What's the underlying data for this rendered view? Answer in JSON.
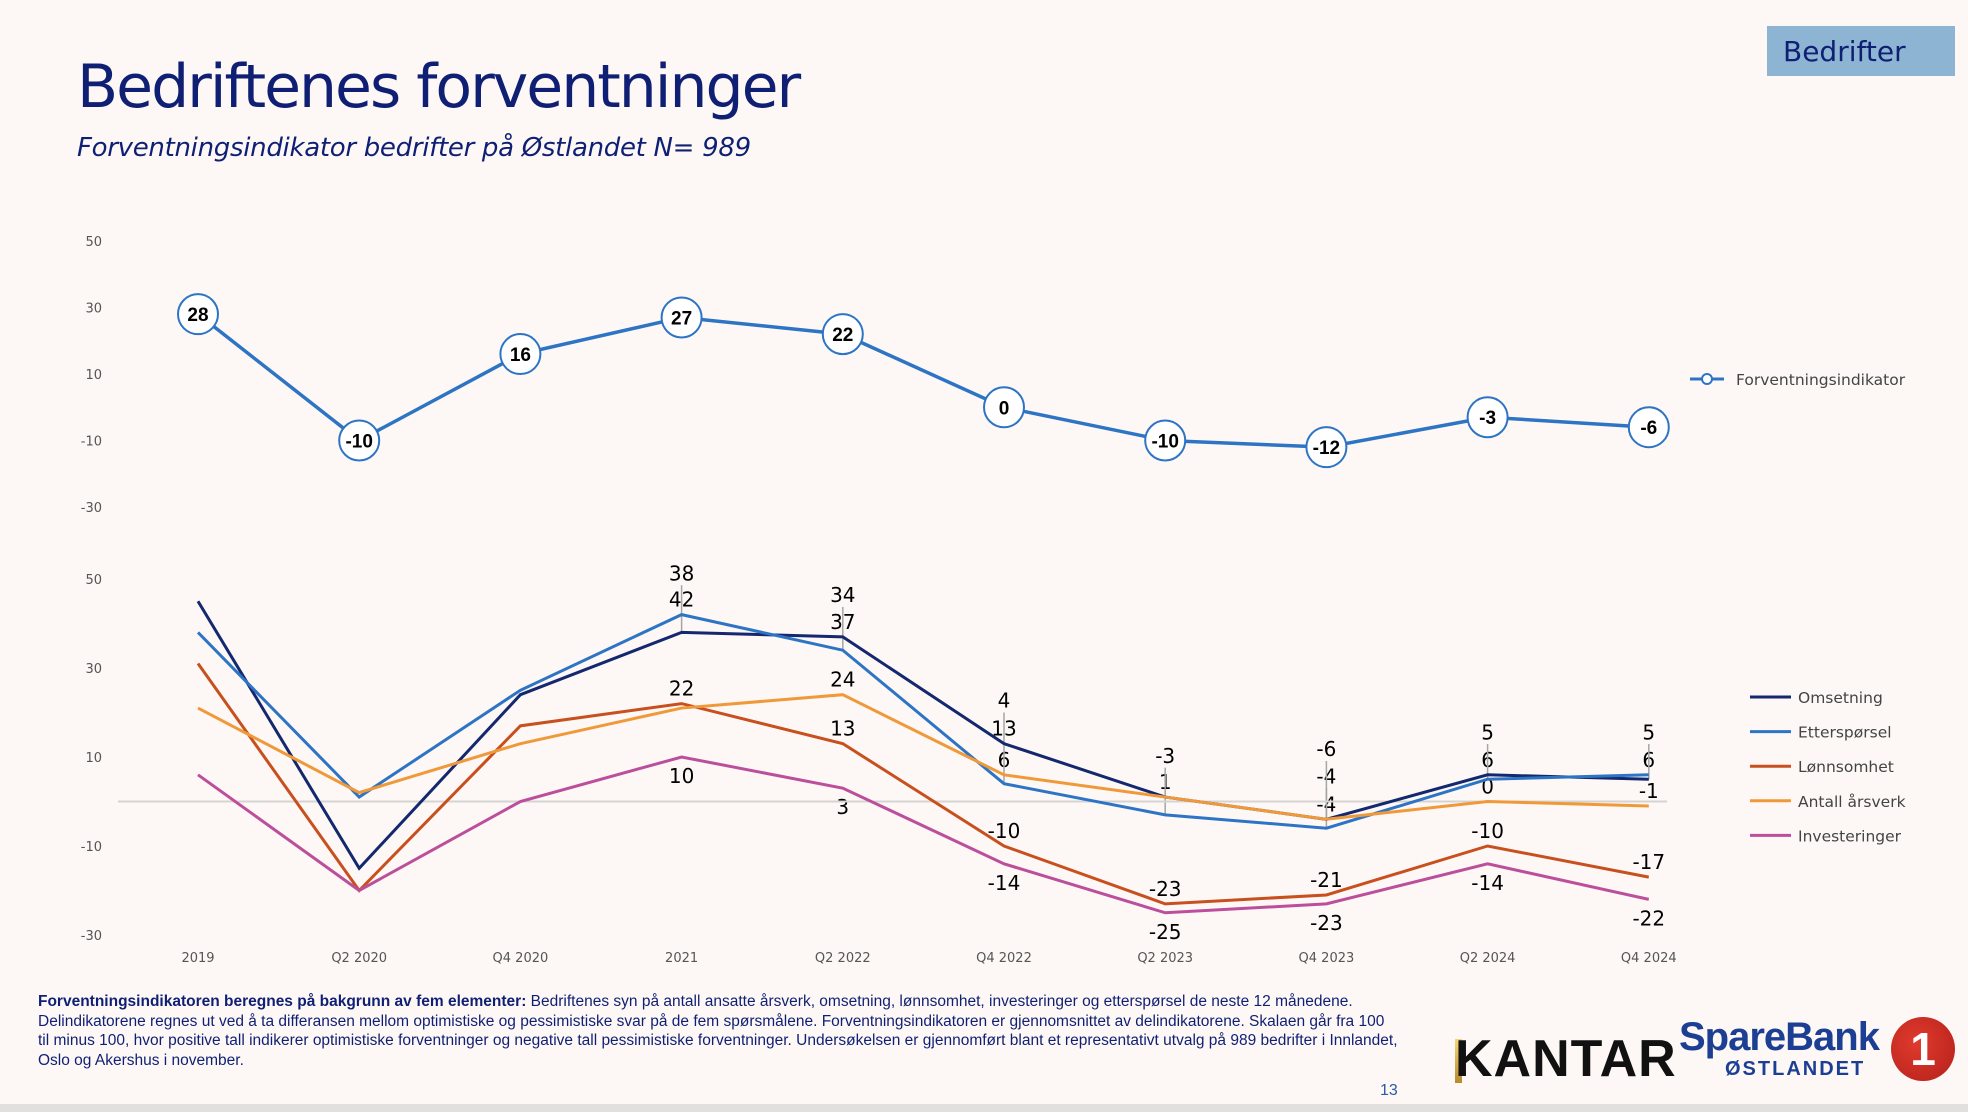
{
  "header": {
    "title": "Bedriftenes forventninger",
    "subtitle": "Forventningsindikator bedrifter på Østlandet N= 989",
    "badge": "Bedrifter"
  },
  "colors": {
    "brand_navy": "#0f1f74",
    "badge_bg": "#8db4d2",
    "background": "#fdf8f5"
  },
  "chart_data": [
    {
      "type": "line",
      "title": "Forventningsindikator",
      "categories": [
        "2019",
        "Q2 2020",
        "Q4 2020",
        "2021",
        "Q2 2022",
        "Q4 2022",
        "Q2 2023",
        "Q4 2023",
        "Q2 2024",
        "Q4 2024"
      ],
      "yticks": [
        "50",
        "30",
        "10",
        "-10",
        "-30"
      ],
      "ylim": [
        -30,
        50
      ],
      "legend_position": "right",
      "series": [
        {
          "name": "Forventningsindikator",
          "color": "#2e74c4",
          "values": [
            28,
            -10,
            16,
            27,
            22,
            0,
            -10,
            -12,
            -3,
            -6
          ],
          "labels": [
            "28",
            "-10",
            "16",
            "27",
            "22",
            "0",
            "-10",
            "-12",
            "-3",
            "-6"
          ]
        }
      ]
    },
    {
      "type": "line",
      "title": "Delindikatorer",
      "categories": [
        "2019",
        "Q2 2020",
        "Q4 2020",
        "2021",
        "Q2 2022",
        "Q4 2022",
        "Q2 2023",
        "Q4 2023",
        "Q2 2024",
        "Q4 2024"
      ],
      "yticks": [
        "50",
        "30",
        "10",
        "-10",
        "-30"
      ],
      "ylim": [
        -30,
        50
      ],
      "legend_position": "right",
      "series": [
        {
          "name": "Omsetning",
          "color": "#13286e",
          "values": [
            45,
            -15,
            24,
            38,
            37,
            13,
            1,
            -4,
            6,
            5
          ],
          "labels": [
            "",
            "",
            "",
            "38",
            "37",
            "13",
            "1",
            "-4",
            "6",
            "5"
          ]
        },
        {
          "name": "Etterspørsel",
          "color": "#2e74c4",
          "values": [
            38,
            1,
            25,
            42,
            34,
            4,
            -3,
            -6,
            5,
            6
          ],
          "labels": [
            "",
            "",
            "",
            "42",
            "34",
            "4",
            "-3",
            "-6",
            "5",
            "6"
          ]
        },
        {
          "name": "Lønnsomhet",
          "color": "#c8501e",
          "values": [
            31,
            -20,
            17,
            22,
            13,
            -10,
            -23,
            -21,
            -10,
            -17
          ],
          "labels": [
            "",
            "",
            "",
            "22",
            "13",
            "-10",
            "-23",
            "-21",
            "-10",
            "-17"
          ]
        },
        {
          "name": "Antall årsverk",
          "color": "#f0993a",
          "values": [
            21,
            2,
            13,
            21,
            24,
            6,
            1,
            -4,
            0,
            -1
          ],
          "labels": [
            "",
            "",
            "",
            "",
            "24",
            "6",
            "",
            "-4",
            "0",
            "-1"
          ]
        },
        {
          "name": "Investeringer",
          "color": "#bc4f9c",
          "values": [
            6,
            -20,
            0,
            10,
            3,
            -14,
            -25,
            -23,
            -14,
            -22
          ],
          "labels": [
            "",
            "",
            "",
            "10",
            "3",
            "-14",
            "-25",
            "-23",
            "-14",
            "-22"
          ]
        }
      ]
    }
  ],
  "footnote": {
    "bold": "Forventningsindikatoren beregnes på bakgrunn av fem elementer:",
    "text": " Bedriftenes syn på antall ansatte årsverk, omsetning, lønnsomhet, investeringer og etterspørsel de neste 12 månedene. Delindikatorene regnes ut ved å ta differansen mellom optimistiske og pessimistiske svar på de fem spørsmålene. Forventningsindikatoren er gjennomsnittet av delindikatorene. Skalaen går fra 100 til minus 100, hvor positive tall indikerer optimistiske forventninger og negative tall pessimistiske forventninger. Undersøkelsen er gjennomført blant et representativt utvalg på 989 bedrifter i Innlandet, Oslo og Akershus i november."
  },
  "page_number": "13",
  "logos": {
    "kantar": "KANTAR",
    "sparebank_name": "SpareBank",
    "sparebank_region": "ØSTLANDET",
    "sparebank_mark": "1"
  }
}
